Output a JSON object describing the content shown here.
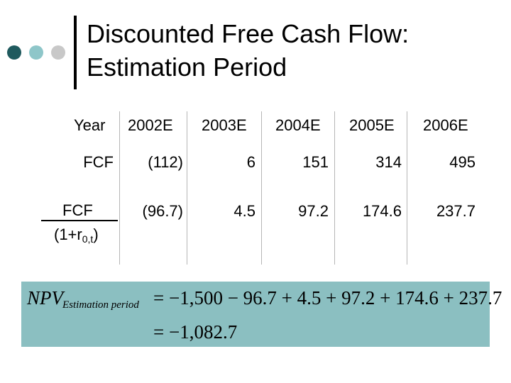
{
  "slide": {
    "title_line1": "Discounted Free Cash Flow:",
    "title_line2": "Estimation Period"
  },
  "table": {
    "header_label": "Year",
    "years": [
      "2002E",
      "2003E",
      "2004E",
      "2005E",
      "2006E"
    ],
    "row1_label": "FCF",
    "row1_values": [
      "(112)",
      "6",
      "151",
      "314",
      "495"
    ],
    "row2_label_numerator": "FCF",
    "row2_label_denominator_prefix": "(1+r",
    "row2_label_denominator_subscript": "0,t",
    "row2_label_denominator_suffix": ")",
    "row2_values": [
      "(96.7)",
      "4.5",
      "97.2",
      "174.6",
      "237.7"
    ]
  },
  "formula": {
    "npv": "NPV",
    "subscript": "Estimation period",
    "line1": "= −1,500 − 96.7 + 4.5 + 97.2 + 174.6 + 237.7",
    "line2": "= −1,082.7",
    "background": "#8bbfc1"
  },
  "colors": {
    "dot1": "#1f5a5e",
    "dot2": "#8ec6c9",
    "dot3": "#c8c8c8"
  }
}
